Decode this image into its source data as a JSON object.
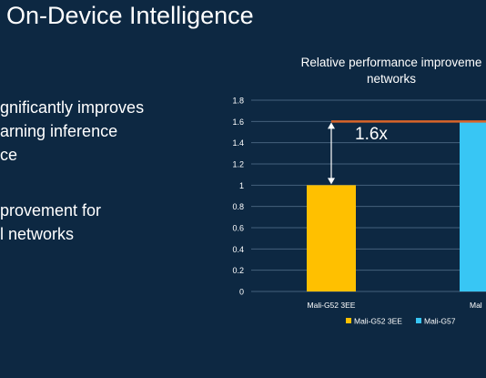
{
  "slide": {
    "title": "On-Device Intelligence",
    "bullet1": [
      "gnificantly improves",
      "arning inference",
      "ce"
    ],
    "bullet2": [
      "provement for",
      "l networks"
    ]
  },
  "chart_data": {
    "type": "bar",
    "title_lines": [
      "Relative performance improveme",
      "networks"
    ],
    "categories": [
      "Mali-G52 3EE",
      "Mal"
    ],
    "series": [
      {
        "name": "Mali-G52 3EE",
        "values": [
          1.0,
          null
        ],
        "color": "#ffc000"
      },
      {
        "name": "Mali-G57",
        "values": [
          null,
          1.6
        ],
        "color": "#38c6f4"
      }
    ],
    "ylim": [
      0,
      1.8
    ],
    "yticks": [
      "0",
      "0.2",
      "0.4",
      "0.6",
      "0.8",
      "1",
      "1.2",
      "1.4",
      "1.6",
      "1.8"
    ],
    "grid": true,
    "legend": "bottom",
    "annotation": {
      "text": "1.6x",
      "from": 1.0,
      "to": 1.6
    },
    "reference_line": {
      "value": 1.6,
      "color": "#d9642a"
    }
  }
}
